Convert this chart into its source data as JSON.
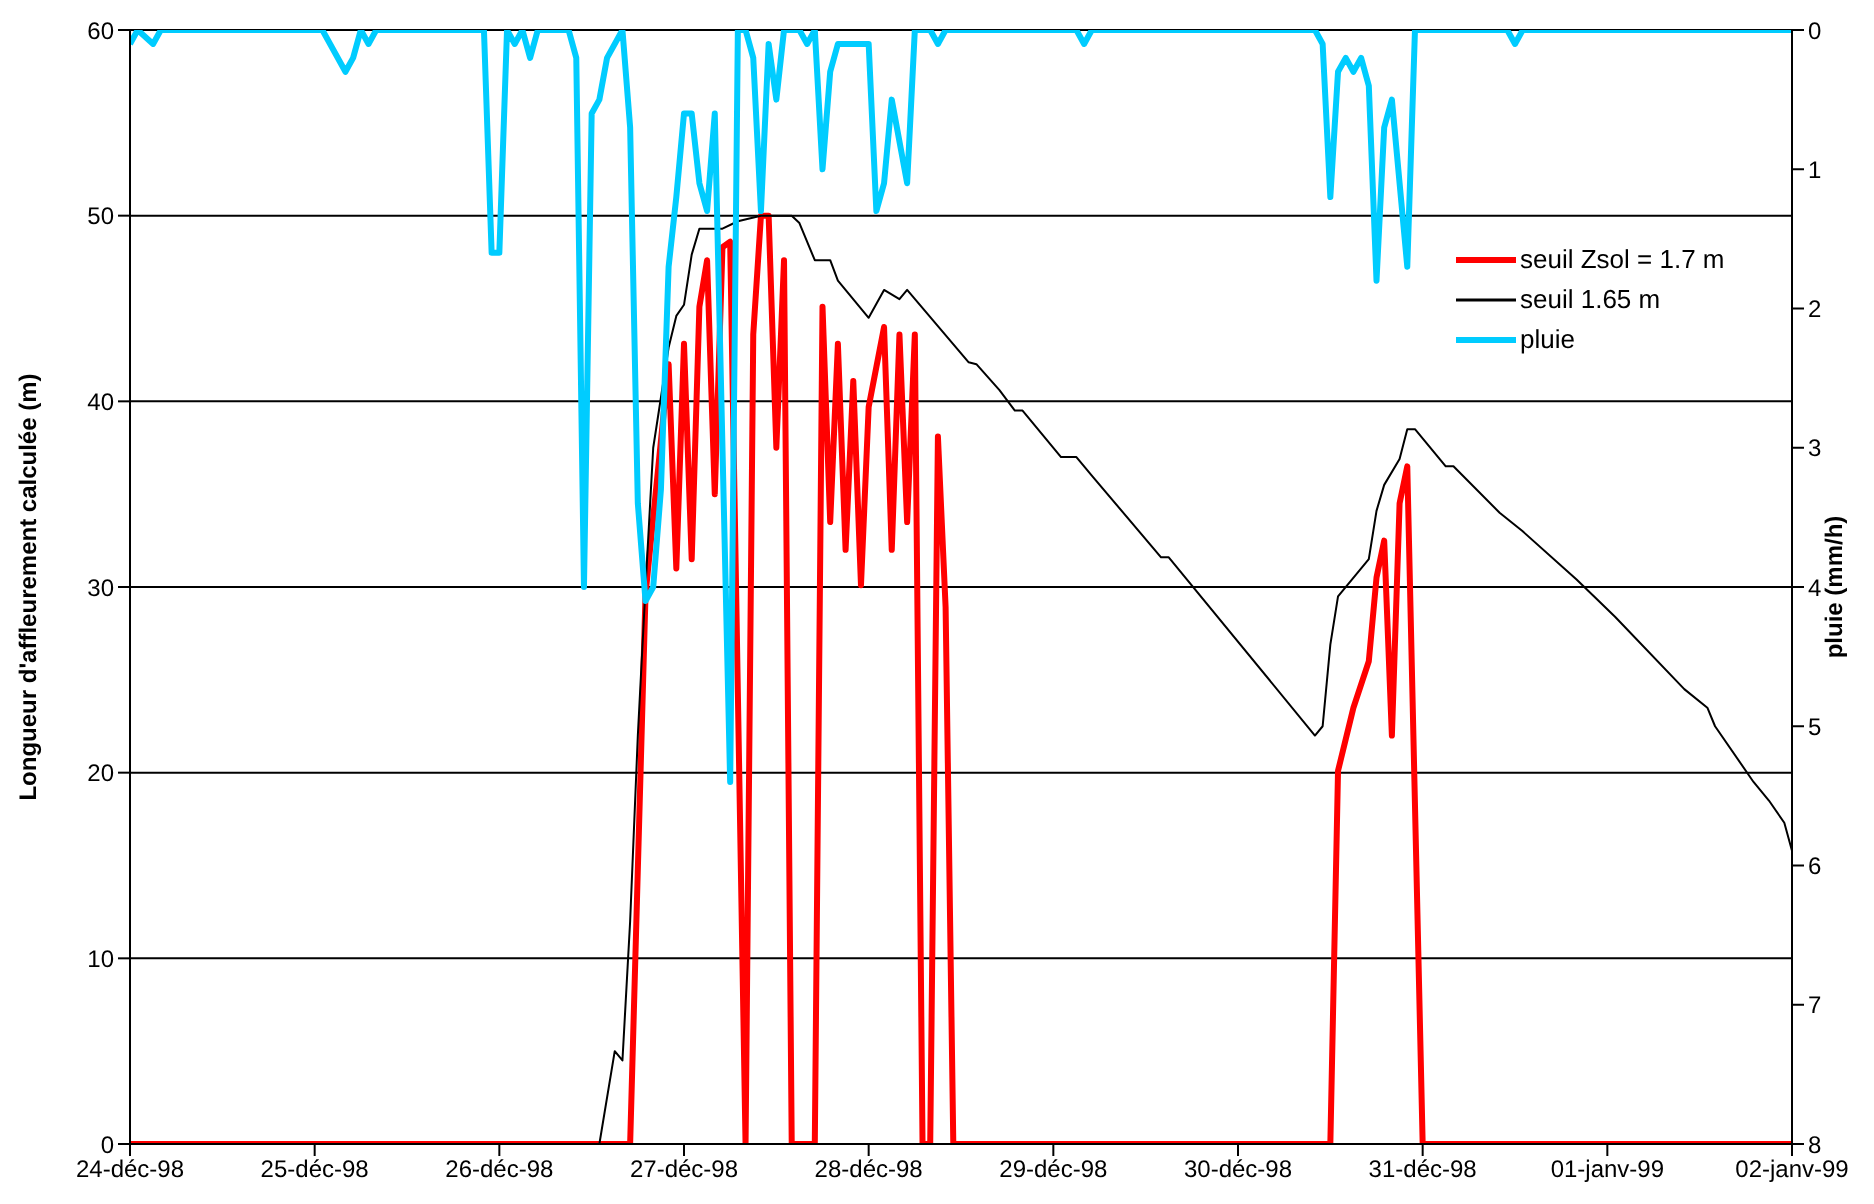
{
  "chart_data": {
    "type": "line",
    "ylabel": "Longueur d'affleurement calculée (m)",
    "y2label": "pluie (mm/h)",
    "xlim": [
      "1998-12-24",
      "1999-01-02"
    ],
    "xticks": [
      {
        "value": "1998-12-24",
        "label": "24-déc-98"
      },
      {
        "value": "1998-12-25",
        "label": "25-déc-98"
      },
      {
        "value": "1998-12-26",
        "label": "26-déc-98"
      },
      {
        "value": "1998-12-27",
        "label": "27-déc-98"
      },
      {
        "value": "1998-12-28",
        "label": "28-déc-98"
      },
      {
        "value": "1998-12-29",
        "label": "29-déc-98"
      },
      {
        "value": "1998-12-30",
        "label": "30-déc-98"
      },
      {
        "value": "1998-12-31",
        "label": "31-déc-98"
      },
      {
        "value": "1999-01-01",
        "label": "01-janv-99"
      },
      {
        "value": "1999-01-02",
        "label": "02-janv-99"
      }
    ],
    "ylim": [
      0,
      60
    ],
    "yticks": [
      0,
      10,
      20,
      30,
      40,
      50,
      60
    ],
    "y2lim": [
      8,
      0
    ],
    "y2ticks": [
      0,
      1,
      2,
      3,
      4,
      5,
      6,
      7,
      8
    ],
    "grid": "y",
    "legend": "top right",
    "series": [
      {
        "name": "seuil Zsol = 1.7 m",
        "color": "#ff0000",
        "x": [
          "1998-12-24T00:00",
          "1998-12-26T17:00",
          "1998-12-26T19:00",
          "1998-12-26T22:00",
          "1998-12-26T23:00",
          "1998-12-27T00:00",
          "1998-12-27T01:00",
          "1998-12-27T02:00",
          "1998-12-27T03:00",
          "1998-12-27T04:00",
          "1998-12-27T05:00",
          "1998-12-27T06:00",
          "1998-12-27T08:00",
          "1998-12-27T09:00",
          "1998-12-27T10:00",
          "1998-12-27T11:00",
          "1998-12-27T12:00",
          "1998-12-27T13:00",
          "1998-12-27T14:00",
          "1998-12-27T17:00",
          "1998-12-27T18:00",
          "1998-12-27T19:00",
          "1998-12-27T20:00",
          "1998-12-27T21:00",
          "1998-12-27T22:00",
          "1998-12-27T23:00",
          "1998-12-28T00:00",
          "1998-12-28T02:00",
          "1998-12-28T03:00",
          "1998-12-28T04:00",
          "1998-12-28T05:00",
          "1998-12-28T06:00",
          "1998-12-28T07:00",
          "1998-12-28T08:00",
          "1998-12-28T09:00",
          "1998-12-28T10:00",
          "1998-12-28T11:00",
          "1998-12-30T12:00",
          "1998-12-30T13:00",
          "1998-12-30T15:00",
          "1998-12-30T17:00",
          "1998-12-30T18:00",
          "1998-12-30T19:00",
          "1998-12-30T20:00",
          "1998-12-30T21:00",
          "1998-12-30T22:00",
          "1998-12-31T00:00",
          "1999-01-02T00:00"
        ],
        "values": [
          0,
          0,
          29.6,
          42.0,
          31.0,
          43.1,
          31.5,
          45.1,
          47.6,
          35.0,
          48.3,
          48.6,
          0,
          43.6,
          50,
          50,
          37.5,
          47.6,
          0,
          0,
          45.1,
          33.5,
          43.1,
          32.0,
          41.1,
          30.1,
          39.7,
          44.0,
          32.0,
          43.6,
          33.5,
          43.6,
          0,
          0,
          38.1,
          28.9,
          0,
          0,
          20.1,
          23.5,
          26.0,
          30.5,
          32.5,
          22.0,
          34.5,
          36.5,
          0,
          0
        ]
      },
      {
        "name": "seuil 1.65 m",
        "color": "#000000",
        "x": [
          "1998-12-24T00:00",
          "1998-12-26T13:00",
          "1998-12-26T15:00",
          "1998-12-26T16:00",
          "1998-12-26T17:00",
          "1998-12-26T18:00",
          "1998-12-26T19:00",
          "1998-12-26T20:00",
          "1998-12-26T22:00",
          "1998-12-26T23:00",
          "1998-12-27T00:00",
          "1998-12-27T01:00",
          "1998-12-27T02:00",
          "1998-12-27T05:00",
          "1998-12-27T07:00",
          "1998-12-27T10:00",
          "1998-12-27T14:00",
          "1998-12-27T15:00",
          "1998-12-27T17:00",
          "1998-12-27T19:00",
          "1998-12-27T20:00",
          "1998-12-28T00:00",
          "1998-12-28T02:00",
          "1998-12-28T04:00",
          "1998-12-28T05:00",
          "1998-12-28T13:00",
          "1998-12-28T14:00",
          "1998-12-28T17:00",
          "1998-12-28T19:00",
          "1998-12-28T20:00",
          "1998-12-29T01:00",
          "1998-12-29T03:00",
          "1998-12-29T05:00",
          "1998-12-29T14:00",
          "1998-12-29T15:00",
          "1998-12-30T10:00",
          "1998-12-30T11:00",
          "1998-12-30T12:00",
          "1998-12-30T13:00",
          "1998-12-30T17:00",
          "1998-12-30T18:00",
          "1998-12-30T19:00",
          "1998-12-30T21:00",
          "1998-12-30T22:00",
          "1998-12-30T23:00",
          "1998-12-31T03:00",
          "1998-12-31T04:00",
          "1998-12-31T10:00",
          "1998-12-31T13:00",
          "1998-12-31T20:00",
          "1999-01-01T01:00",
          "1999-01-01T10:00",
          "1999-01-01T13:00",
          "1999-01-01T14:00",
          "1999-01-01T19:00",
          "1999-01-01T21:00",
          "1999-01-01T23:00",
          "1999-01-02T00:00"
        ],
        "values": [
          0,
          0,
          5.0,
          4.5,
          12,
          22,
          30,
          37.5,
          42.9,
          44.6,
          45.2,
          47.9,
          49.3,
          49.3,
          49.7,
          50,
          50,
          49.6,
          47.6,
          47.6,
          46.5,
          44.5,
          46.0,
          45.5,
          46.0,
          42.1,
          42.0,
          40.6,
          39.5,
          39.5,
          37.0,
          37.0,
          36.0,
          31.6,
          31.6,
          22.0,
          22.5,
          26.9,
          29.5,
          31.5,
          34.1,
          35.5,
          36.9,
          38.5,
          38.5,
          36.5,
          36.5,
          34.0,
          33.0,
          30.4,
          28.4,
          24.5,
          23.5,
          22.5,
          19.5,
          18.5,
          17.3,
          15.8
        ]
      },
      {
        "name": "pluie",
        "color": "#00ccff",
        "axis": "y2",
        "x": [
          "1998-12-24T00:00",
          "1998-12-24T01:00",
          "1998-12-24T03:00",
          "1998-12-24T04:00",
          "1998-12-25T01:00",
          "1998-12-25T04:00",
          "1998-12-25T05:00",
          "1998-12-25T06:00",
          "1998-12-25T07:00",
          "1998-12-25T08:00",
          "1998-12-25T22:00",
          "1998-12-25T23:00",
          "1998-12-26T00:00",
          "1998-12-26T01:00",
          "1998-12-26T02:00",
          "1998-12-26T03:00",
          "1998-12-26T04:00",
          "1998-12-26T05:00",
          "1998-12-26T09:00",
          "1998-12-26T10:00",
          "1998-12-26T11:00",
          "1998-12-26T12:00",
          "1998-12-26T13:00",
          "1998-12-26T14:00",
          "1998-12-26T16:00",
          "1998-12-26T17:00",
          "1998-12-26T18:00",
          "1998-12-26T19:00",
          "1998-12-26T20:00",
          "1998-12-26T21:00",
          "1998-12-26T22:00",
          "1998-12-26T23:00",
          "1998-12-27T00:00",
          "1998-12-27T01:00",
          "1998-12-27T02:00",
          "1998-12-27T03:00",
          "1998-12-27T04:00",
          "1998-12-27T06:00",
          "1998-12-27T07:00",
          "1998-12-27T08:00",
          "1998-12-27T09:00",
          "1998-12-27T10:00",
          "1998-12-27T11:00",
          "1998-12-27T12:00",
          "1998-12-27T13:00",
          "1998-12-27T15:00",
          "1998-12-27T16:00",
          "1998-12-27T17:00",
          "1998-12-27T18:00",
          "1998-12-27T19:00",
          "1998-12-27T20:00",
          "1998-12-28T00:00",
          "1998-12-28T01:00",
          "1998-12-28T02:00",
          "1998-12-28T03:00",
          "1998-12-28T05:00",
          "1998-12-28T06:00",
          "1998-12-28T08:00",
          "1998-12-28T09:00",
          "1998-12-28T10:00",
          "1998-12-29T03:00",
          "1998-12-29T04:00",
          "1998-12-29T05:00",
          "1998-12-30T10:00",
          "1998-12-30T11:00",
          "1998-12-30T12:00",
          "1998-12-30T13:00",
          "1998-12-30T14:00",
          "1998-12-30T15:00",
          "1998-12-30T16:00",
          "1998-12-30T17:00",
          "1998-12-30T18:00",
          "1998-12-30T19:00",
          "1998-12-30T20:00",
          "1998-12-30T22:00",
          "1998-12-30T23:00",
          "1998-12-31T11:00",
          "1998-12-31T12:00",
          "1998-12-31T13:00",
          "1999-01-02T00:00"
        ],
        "values": [
          0.1,
          0,
          0.1,
          0,
          0,
          0.3,
          0.2,
          0,
          0.1,
          0,
          0,
          1.6,
          1.6,
          0,
          0.1,
          0,
          0.2,
          0,
          0,
          0.2,
          4.0,
          0.6,
          0.5,
          0.2,
          0,
          0.7,
          3.4,
          4.1,
          4.0,
          3.3,
          1.7,
          1.2,
          0.6,
          0.6,
          1.1,
          1.3,
          0.6,
          5.4,
          0,
          0,
          0.2,
          1.3,
          0.1,
          0.5,
          0,
          0,
          0.1,
          0,
          1.0,
          0.3,
          0.1,
          0.1,
          1.3,
          1.1,
          0.5,
          1.1,
          0,
          0,
          0.1,
          0,
          0,
          0.1,
          0,
          0,
          0.1,
          1.2,
          0.3,
          0.2,
          0.3,
          0.2,
          0.4,
          1.8,
          0.7,
          0.5,
          1.7,
          0,
          0,
          0.1,
          0,
          0
        ]
      }
    ]
  }
}
